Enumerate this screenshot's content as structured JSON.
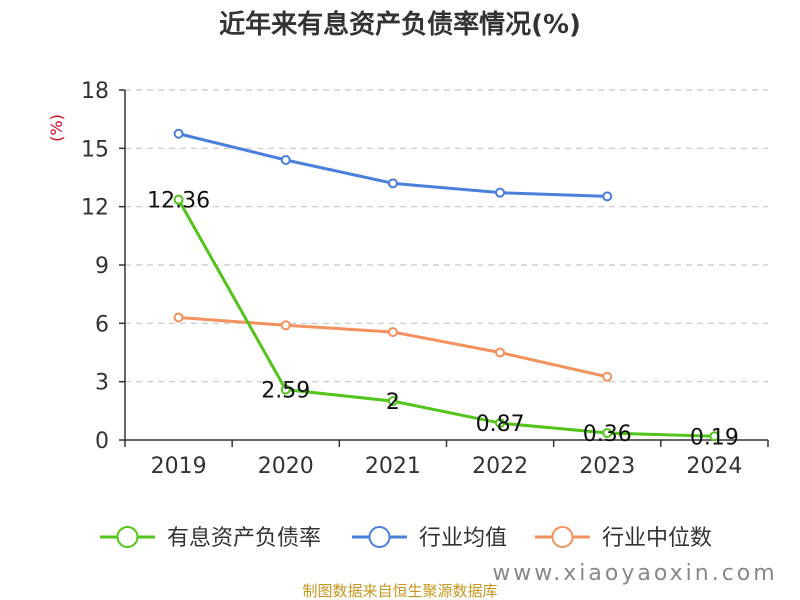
{
  "chart_data": {
    "type": "line",
    "title": "近年来有息资产负债率情况(%)",
    "ylabel": "(%)",
    "categories": [
      "2019",
      "2020",
      "2021",
      "2022",
      "2023",
      "2024"
    ],
    "ylim": [
      0,
      18
    ],
    "yticks": [
      0,
      3,
      6,
      9,
      12,
      15,
      18
    ],
    "grid": "horizontal-dashed",
    "legend_position": "bottom",
    "series": [
      {
        "name": "有息资产负债率",
        "color": "#52c41a",
        "values": [
          12.36,
          2.59,
          2,
          0.87,
          0.36,
          0.19
        ],
        "labels": [
          "12.36",
          "2.59",
          "2",
          "0.87",
          "0.36",
          "0.19"
        ]
      },
      {
        "name": "行业均值",
        "color": "#4a7fdc",
        "values": [
          15.75,
          14.4,
          13.2,
          12.72,
          12.53,
          null
        ]
      },
      {
        "name": "行业中位数",
        "color": "#f4915c",
        "values": [
          6.3,
          5.9,
          5.55,
          4.5,
          3.25,
          null
        ]
      }
    ]
  },
  "footer": {
    "source": "制图数据来自恒生聚源数据库",
    "watermark": "www.xiaoyaoxin.com"
  }
}
